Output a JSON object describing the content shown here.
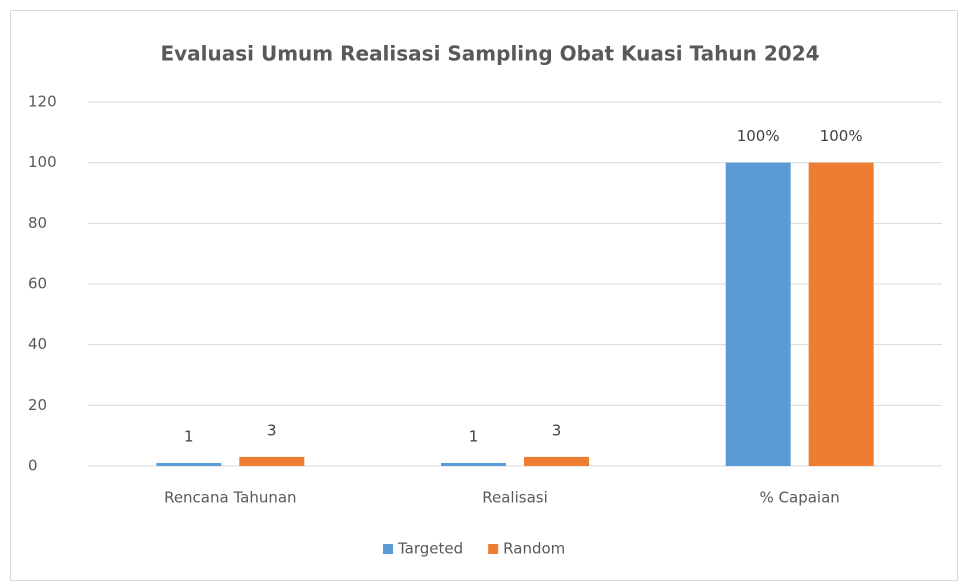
{
  "chart_data": {
    "type": "bar",
    "title": "Evaluasi Umum Realisasi Sampling Obat Kuasi Tahun 2024",
    "categories": [
      "Rencana Tahunan",
      "Realisasi",
      "% Capaian"
    ],
    "series": [
      {
        "name": "Targeted",
        "color": "#5b9bd5",
        "values": [
          1,
          1,
          100
        ],
        "value_labels": [
          "1",
          "1",
          "100%"
        ]
      },
      {
        "name": "Random",
        "color": "#ed7d31",
        "values": [
          3,
          3,
          100
        ],
        "value_labels": [
          "3",
          "3",
          "100%"
        ]
      }
    ],
    "ylim": [
      0,
      120
    ],
    "yticks": [
      0,
      20,
      40,
      60,
      80,
      100,
      120
    ],
    "grid": true,
    "legend": "bottom"
  }
}
